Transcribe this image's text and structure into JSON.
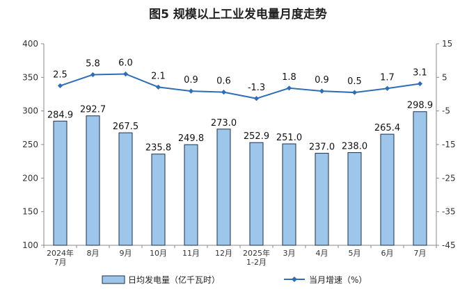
{
  "chart_data": {
    "type": "bar+line",
    "title": "图5  规模以上工业发电量月度走势",
    "categories": [
      [
        "2024年",
        "7月"
      ],
      [
        "8月"
      ],
      [
        "9月"
      ],
      [
        "10月"
      ],
      [
        "11月"
      ],
      [
        "12月"
      ],
      [
        "2025年",
        "1-2月"
      ],
      [
        "3月"
      ],
      [
        "4月"
      ],
      [
        "5月"
      ],
      [
        "6月"
      ],
      [
        "7月"
      ]
    ],
    "series": [
      {
        "name": "日均发电量（亿千瓦时）",
        "type": "bar",
        "axis": "left",
        "values": [
          284.9,
          292.7,
          267.5,
          235.8,
          249.8,
          273.0,
          252.9,
          251.0,
          237.0,
          238.0,
          265.4,
          298.9
        ],
        "labels": [
          "284.9",
          "292.7",
          "267.5",
          "235.8",
          "249.8",
          "273.0",
          "252.9",
          "251.0",
          "237.0",
          "238.0",
          "265.4",
          "298.9"
        ],
        "color": "#9ec6ea"
      },
      {
        "name": "当月增速（%）",
        "type": "line",
        "axis": "right",
        "values": [
          2.5,
          5.8,
          6.0,
          2.1,
          0.9,
          0.6,
          -1.3,
          1.8,
          0.9,
          0.5,
          1.7,
          3.1
        ],
        "labels": [
          "2.5",
          "5.8",
          "6.0",
          "2.1",
          "0.9",
          "0.6",
          "-1.3",
          "1.8",
          "0.9",
          "0.5",
          "1.7",
          "3.1"
        ],
        "color": "#2f6db5"
      }
    ],
    "ylim_left": [
      100,
      400
    ],
    "yticks_left": [
      "400",
      "350",
      "300",
      "250",
      "200",
      "150",
      "100"
    ],
    "ylim_right": [
      -45,
      15
    ],
    "yticks_right": [
      "15",
      "5",
      "-5",
      "-15",
      "-25",
      "-35",
      "-45"
    ],
    "grid": false,
    "legend_position": "bottom"
  }
}
